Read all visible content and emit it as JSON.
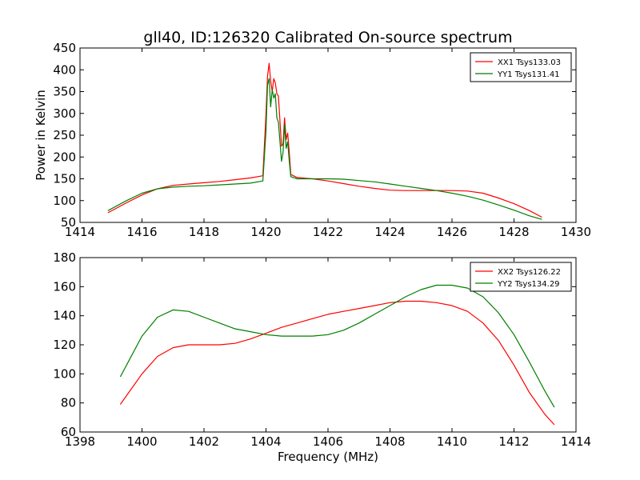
{
  "title": "gll40, ID:126320 Calibrated On-source spectrum",
  "chart_data": [
    {
      "type": "line",
      "xlim": [
        1414,
        1430
      ],
      "ylim": [
        50,
        450
      ],
      "xticks": [
        "1414",
        "1416",
        "1418",
        "1420",
        "1422",
        "1424",
        "1426",
        "1428",
        "1430"
      ],
      "yticks": [
        "50",
        "100",
        "150",
        "200",
        "250",
        "300",
        "350",
        "400",
        "450"
      ],
      "xlabel": "",
      "ylabel": "Power in Kelvin",
      "legend_position": "top-right",
      "series": [
        {
          "name": "XX1 Tsys133.03",
          "color": "#ff0000",
          "x": [
            1414.9,
            1415.5,
            1416.0,
            1416.5,
            1417.0,
            1417.5,
            1418.0,
            1418.5,
            1419.0,
            1419.5,
            1419.9,
            1420.0,
            1420.05,
            1420.1,
            1420.15,
            1420.2,
            1420.25,
            1420.3,
            1420.35,
            1420.4,
            1420.5,
            1420.55,
            1420.6,
            1420.65,
            1420.7,
            1420.75,
            1420.8,
            1421.0,
            1421.5,
            1422.0,
            1422.5,
            1423.0,
            1423.5,
            1424.0,
            1424.5,
            1425.0,
            1425.5,
            1426.0,
            1426.5,
            1427.0,
            1427.5,
            1428.0,
            1428.5,
            1428.9
          ],
          "y": [
            72,
            95,
            113,
            127,
            135,
            138,
            141,
            144,
            148,
            152,
            157,
            300,
            385,
            415,
            375,
            350,
            380,
            370,
            345,
            340,
            225,
            230,
            290,
            240,
            255,
            210,
            160,
            153,
            150,
            145,
            139,
            133,
            128,
            124,
            123,
            123,
            123,
            123,
            122,
            117,
            106,
            93,
            77,
            62
          ]
        },
        {
          "name": "YY1 Tsys131.41",
          "color": "#007f00",
          "x": [
            1414.9,
            1415.5,
            1416.0,
            1416.5,
            1417.0,
            1417.5,
            1418.0,
            1418.5,
            1419.0,
            1419.5,
            1419.9,
            1420.0,
            1420.05,
            1420.1,
            1420.15,
            1420.2,
            1420.25,
            1420.3,
            1420.35,
            1420.4,
            1420.5,
            1420.55,
            1420.6,
            1420.65,
            1420.7,
            1420.75,
            1420.8,
            1421.0,
            1421.5,
            1422.0,
            1422.5,
            1423.0,
            1423.5,
            1424.0,
            1424.5,
            1425.0,
            1425.5,
            1426.0,
            1426.5,
            1427.0,
            1427.5,
            1428.0,
            1428.5,
            1428.9
          ],
          "y": [
            77,
            100,
            117,
            127,
            131,
            133,
            134,
            136,
            138,
            140,
            145,
            260,
            365,
            380,
            315,
            355,
            335,
            345,
            290,
            280,
            190,
            210,
            275,
            220,
            235,
            190,
            155,
            150,
            150,
            150,
            149,
            146,
            143,
            138,
            133,
            128,
            123,
            117,
            110,
            101,
            90,
            78,
            65,
            57
          ]
        }
      ]
    },
    {
      "type": "line",
      "xlim": [
        1398,
        1414
      ],
      "ylim": [
        60,
        180
      ],
      "xticks": [
        "1398",
        "1400",
        "1402",
        "1404",
        "1406",
        "1408",
        "1410",
        "1412",
        "1414"
      ],
      "yticks": [
        "60",
        "80",
        "100",
        "120",
        "140",
        "160",
        "180"
      ],
      "xlabel": "Frequency (MHz)",
      "ylabel": "",
      "legend_position": "top-right",
      "series": [
        {
          "name": "XX2 Tsys126.22",
          "color": "#ff0000",
          "x": [
            1399.3,
            1399.6,
            1400.0,
            1400.5,
            1401.0,
            1401.5,
            1402.0,
            1402.5,
            1403.0,
            1403.5,
            1404.0,
            1404.5,
            1405.0,
            1405.5,
            1406.0,
            1406.5,
            1407.0,
            1407.5,
            1408.0,
            1408.5,
            1409.0,
            1409.5,
            1410.0,
            1410.5,
            1411.0,
            1411.5,
            1412.0,
            1412.5,
            1413.0,
            1413.3
          ],
          "y": [
            79,
            88,
            100,
            112,
            118,
            120,
            120,
            120,
            121,
            124,
            128,
            132,
            135,
            138,
            141,
            143,
            145,
            147,
            149,
            150,
            150,
            149,
            147,
            143,
            135,
            123,
            106,
            87,
            72,
            65
          ]
        },
        {
          "name": "YY2 Tsys134.29",
          "color": "#007f00",
          "x": [
            1399.3,
            1399.6,
            1400.0,
            1400.5,
            1401.0,
            1401.5,
            1402.0,
            1402.5,
            1403.0,
            1403.5,
            1404.0,
            1404.5,
            1405.0,
            1405.5,
            1406.0,
            1406.5,
            1407.0,
            1407.5,
            1408.0,
            1408.5,
            1409.0,
            1409.5,
            1410.0,
            1410.5,
            1411.0,
            1411.5,
            1412.0,
            1412.5,
            1413.0,
            1413.3
          ],
          "y": [
            98,
            110,
            126,
            139,
            144,
            143,
            139,
            135,
            131,
            129,
            127,
            126,
            126,
            126,
            127,
            130,
            135,
            141,
            147,
            153,
            158,
            161,
            161,
            159,
            153,
            142,
            127,
            108,
            88,
            77
          ]
        }
      ]
    }
  ]
}
